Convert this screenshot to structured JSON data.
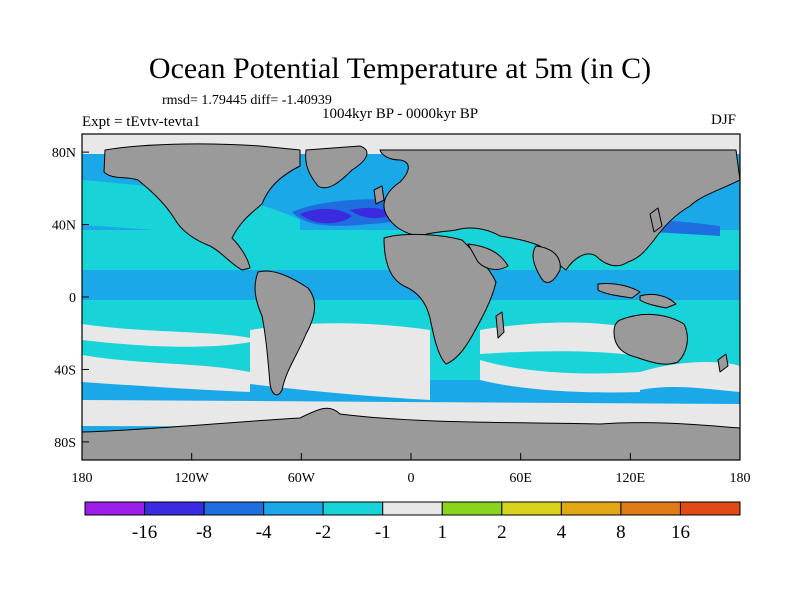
{
  "title": "Ocean Potential Temperature at 5m (in C)",
  "stats": "rmsd= 1.79445 diff= -1.40939",
  "period": "1004kyr BP - 0000kyr BP",
  "experiment": "Expt = tEvtv-tevta1",
  "season": "DJF",
  "axes": {
    "lon_range": [
      -180,
      180
    ],
    "lat_range": [
      -90,
      90
    ],
    "lon_ticks": [
      {
        "value": -180,
        "label": "180"
      },
      {
        "value": -120,
        "label": "120W"
      },
      {
        "value": -60,
        "label": "60W"
      },
      {
        "value": 0,
        "label": "0"
      },
      {
        "value": 60,
        "label": "60E"
      },
      {
        "value": 120,
        "label": "120E"
      },
      {
        "value": 180,
        "label": "180"
      }
    ],
    "lat_ticks": [
      {
        "value": 80,
        "label": "80N"
      },
      {
        "value": 40,
        "label": "40N"
      },
      {
        "value": 0,
        "label": "0"
      },
      {
        "value": -40,
        "label": "40S"
      },
      {
        "value": -80,
        "label": "80S"
      }
    ]
  },
  "colorbar": {
    "colors": [
      "#9b1fe8",
      "#3a2ae0",
      "#1e6ee0",
      "#1aa8e8",
      "#18d4d8",
      "#e8e8e8",
      "#8ad41e",
      "#d8d41e",
      "#e0a814",
      "#e07a14",
      "#e04a14"
    ],
    "labels": [
      "-16",
      "-8",
      "-4",
      "-2",
      "-1",
      "1",
      "2",
      "4",
      "8",
      "16"
    ]
  },
  "colors": {
    "land": "#9a9a9a",
    "ocean_light": "#1aa8e8",
    "ocean_cyan": "#18d4d8",
    "near_zero": "#e8e8e8",
    "strong_cool": "#3a2ae0",
    "medium_cool": "#1e6ee0"
  }
}
